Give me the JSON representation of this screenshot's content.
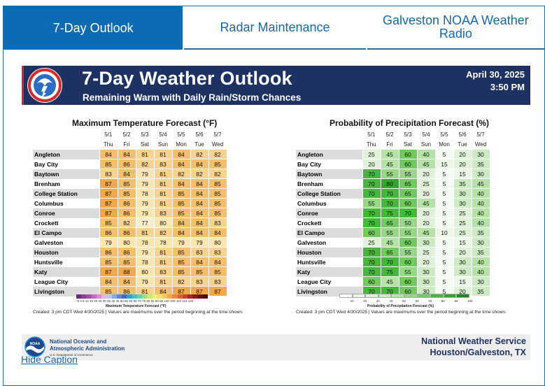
{
  "tabs": [
    {
      "label": "7-Day Outlook",
      "active": true
    },
    {
      "label": "Radar Maintenance",
      "active": false
    },
    {
      "label": "Galveston NOAA Weather Radio",
      "active": false
    }
  ],
  "banner": {
    "title": "7-Day Weather Outlook",
    "subtitle": "Remaining Warm with Daily Rain/Storm Chances",
    "date": "April 30, 2025",
    "time": "3:50 PM"
  },
  "temp_table": {
    "title": "Maximum Temperature Forecast (°F)",
    "dates": [
      "5/1",
      "5/2",
      "5/3",
      "5/4",
      "5/5",
      "5/6",
      "5/7"
    ],
    "days": [
      "Thu",
      "Fri",
      "Sat",
      "Sun",
      "Mon",
      "Tue",
      "Wed"
    ],
    "rows": [
      {
        "city": "Angleton",
        "values": [
          84,
          84,
          81,
          81,
          84,
          82,
          82
        ]
      },
      {
        "city": "Bay City",
        "values": [
          85,
          86,
          82,
          83,
          84,
          84,
          85
        ]
      },
      {
        "city": "Baytown",
        "values": [
          83,
          84,
          79,
          81,
          82,
          82,
          82
        ]
      },
      {
        "city": "Brenham",
        "values": [
          87,
          85,
          79,
          81,
          84,
          84,
          85
        ]
      },
      {
        "city": "College Station",
        "values": [
          87,
          85,
          78,
          81,
          85,
          84,
          85
        ]
      },
      {
        "city": "Columbus",
        "values": [
          87,
          86,
          79,
          81,
          85,
          84,
          85
        ]
      },
      {
        "city": "Conroe",
        "values": [
          87,
          86,
          79,
          83,
          85,
          84,
          85
        ]
      },
      {
        "city": "Crockett",
        "values": [
          85,
          82,
          77,
          80,
          84,
          84,
          83
        ]
      },
      {
        "city": "El Campo",
        "values": [
          86,
          86,
          81,
          82,
          84,
          84,
          84
        ]
      },
      {
        "city": "Galveston",
        "values": [
          79,
          80,
          78,
          78,
          79,
          79,
          80
        ]
      },
      {
        "city": "Houston",
        "values": [
          86,
          86,
          79,
          81,
          85,
          83,
          83
        ]
      },
      {
        "city": "Huntsville",
        "values": [
          85,
          85,
          78,
          81,
          85,
          84,
          84
        ]
      },
      {
        "city": "Katy",
        "values": [
          87,
          88,
          80,
          83,
          85,
          85,
          85
        ]
      },
      {
        "city": "League City",
        "values": [
          84,
          84,
          79,
          81,
          82,
          83,
          83
        ]
      },
      {
        "city": "Livingston",
        "values": [
          85,
          86,
          81,
          84,
          87,
          87,
          87
        ]
      }
    ],
    "colorbar_label": "Maximum Temperature Forecast (°F)",
    "colorbar_ticks": "-5 0 5 10 15 20 25 30 35 40 45 50 55 60 65 70 75 80 85 90 95 100 105 110 115 120",
    "created": "Created: 3 pm CDT Wed 4/30/2025  |  Values are maximums over the period beginning at the time shown."
  },
  "pop_table": {
    "title": "Probability of Precipitation Forecast (%)",
    "dates": [
      "5/1",
      "5/2",
      "5/3",
      "5/4",
      "5/5",
      "5/6",
      "5/7"
    ],
    "days": [
      "Thu",
      "Fri",
      "Sat",
      "Sun",
      "Mon",
      "Tue",
      "Wed"
    ],
    "rows": [
      {
        "city": "Angleton",
        "values": [
          25,
          45,
          60,
          40,
          5,
          20,
          30
        ]
      },
      {
        "city": "Bay City",
        "values": [
          20,
          45,
          60,
          45,
          15,
          20,
          35
        ]
      },
      {
        "city": "Baytown",
        "values": [
          70,
          55,
          55,
          20,
          5,
          15,
          30
        ]
      },
      {
        "city": "Brenham",
        "values": [
          70,
          80,
          65,
          25,
          5,
          35,
          45
        ]
      },
      {
        "city": "College Station",
        "values": [
          70,
          70,
          65,
          20,
          5,
          30,
          40
        ]
      },
      {
        "city": "Columbus",
        "values": [
          55,
          70,
          60,
          45,
          5,
          30,
          40
        ]
      },
      {
        "city": "Conroe",
        "values": [
          70,
          75,
          70,
          20,
          5,
          25,
          40
        ]
      },
      {
        "city": "Crockett",
        "values": [
          70,
          65,
          50,
          20,
          5,
          25,
          40
        ]
      },
      {
        "city": "El Campo",
        "values": [
          60,
          55,
          55,
          45,
          10,
          25,
          35
        ]
      },
      {
        "city": "Galveston",
        "values": [
          25,
          45,
          60,
          30,
          5,
          15,
          30
        ]
      },
      {
        "city": "Houston",
        "values": [
          70,
          65,
          55,
          25,
          5,
          20,
          35
        ]
      },
      {
        "city": "Huntsville",
        "values": [
          70,
          70,
          60,
          20,
          5,
          30,
          40
        ]
      },
      {
        "city": "Katy",
        "values": [
          70,
          75,
          55,
          30,
          5,
          30,
          40
        ]
      },
      {
        "city": "League City",
        "values": [
          60,
          45,
          60,
          30,
          5,
          15,
          30
        ]
      },
      {
        "city": "Livingston",
        "values": [
          70,
          70,
          60,
          30,
          5,
          20,
          35
        ]
      }
    ],
    "colorbar_label": "Probability of Precipitation Forecast (%)",
    "colorbar_ticks": [
      "10",
      "20",
      "30",
      "40",
      "50",
      "60",
      "70",
      "80",
      "90",
      "100"
    ],
    "created": "Created: 3 pm CDT Wed 4/30/2025  |  Values are maximums over the period beginning at the time shown."
  },
  "footer": {
    "noaa_line1": "National Oceanic and",
    "noaa_line2": "Atmospheric Administration",
    "noaa_line3": "U.S. Department of Commerce",
    "nws_line1": "National Weather Service",
    "nws_line2": "Houston/Galveston, TX"
  },
  "caption_link": "Hide Caption",
  "colors": {
    "tab_active": "#0b6bb5",
    "tab_text": "#1669a8",
    "banner_bg": "#1d3263"
  }
}
